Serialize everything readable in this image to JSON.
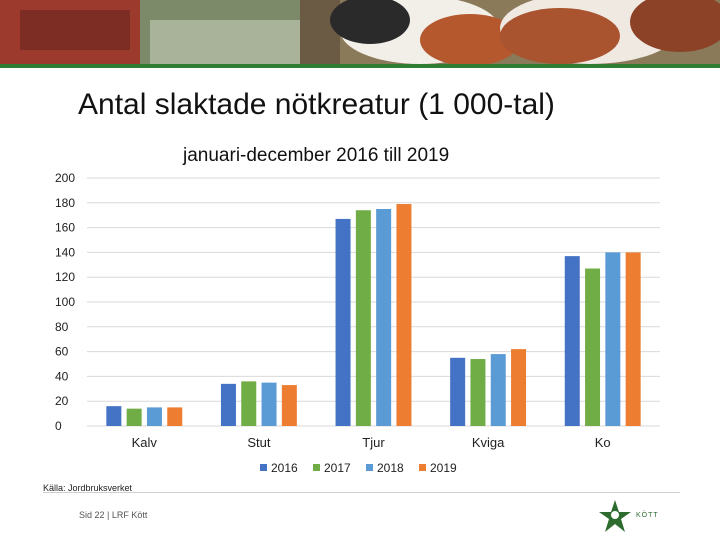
{
  "footer": {
    "source": "Källa: Jordbruksverket",
    "page": "Sid 22 | LRF Kött",
    "logo_text": "KÖTT"
  },
  "colors": {
    "banner_green": "#2f7d32",
    "gridline": "#d9d9d9"
  },
  "chart_data": {
    "type": "bar",
    "title": "Antal slaktade nötkreatur (1 000-tal)",
    "subtitle": "januari-december 2016 till 2019",
    "categories": [
      "Kalv",
      "Stut",
      "Tjur",
      "Kviga",
      "Ko"
    ],
    "series": [
      {
        "name": "2016",
        "color": "#4472c4",
        "values": [
          16,
          34,
          167,
          55,
          137
        ]
      },
      {
        "name": "2017",
        "color": "#70ad47",
        "values": [
          14,
          36,
          174,
          54,
          127
        ]
      },
      {
        "name": "2018",
        "color": "#5b9bd5",
        "values": [
          15,
          35,
          175,
          58,
          140
        ]
      },
      {
        "name": "2019",
        "color": "#ed7d31",
        "values": [
          15,
          33,
          179,
          62,
          140
        ]
      }
    ],
    "ylim": [
      0,
      200
    ],
    "yticks": [
      "0",
      "20",
      "40",
      "60",
      "80",
      "100",
      "120",
      "140",
      "160",
      "180",
      "200"
    ],
    "grid": true,
    "legend": "bottom"
  }
}
